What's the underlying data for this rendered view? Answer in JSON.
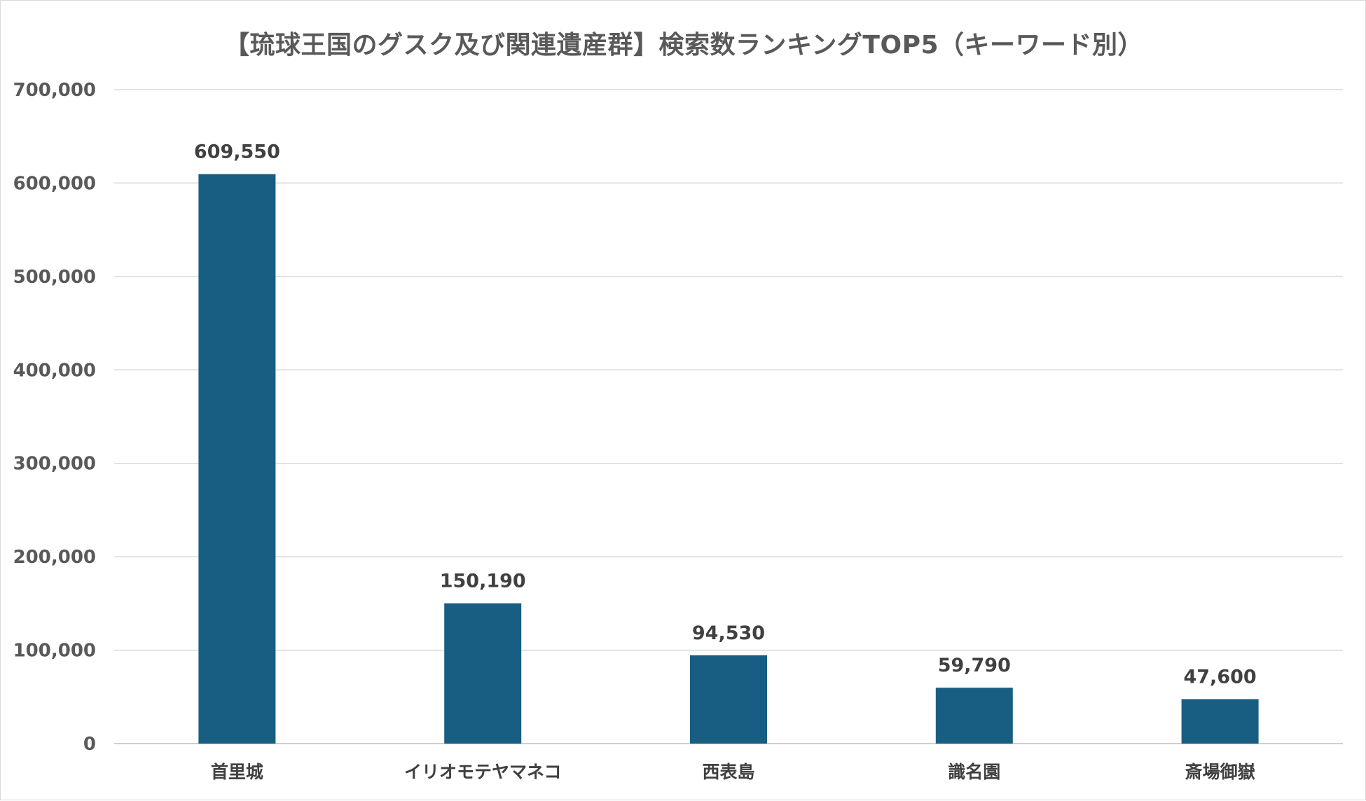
{
  "chart_data": {
    "type": "bar",
    "title": "【琉球王国のグスク及び関連遺産群】検索数ランキングTOP5（キーワード別）",
    "xlabel": "",
    "ylabel": "",
    "categories": [
      "首里城",
      "イリオモテヤマネコ",
      "西表島",
      "識名園",
      "斎場御嶽"
    ],
    "values": [
      609550,
      150190,
      94530,
      59790,
      47600
    ],
    "value_labels": [
      "609,550",
      "150,190",
      "94,530",
      "59,790",
      "47,600"
    ],
    "ylim": [
      0,
      700000
    ],
    "yticks": [
      0,
      100000,
      200000,
      300000,
      400000,
      500000,
      600000,
      700000
    ],
    "ytick_labels": [
      "0",
      "100,000",
      "200,000",
      "300,000",
      "400,000",
      "500,000",
      "600,000",
      "700,000"
    ],
    "grid": true,
    "legend": "none",
    "bar_color": "#175e82"
  }
}
